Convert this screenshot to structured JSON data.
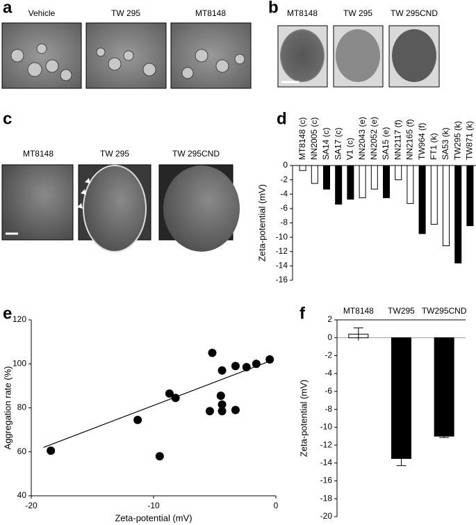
{
  "images": [
    {
      "panel_label": "a",
      "captions": [
        "Vehicle",
        "TW 295",
        "MT8148"
      ]
    },
    {
      "panel_label": "b",
      "captions": [
        "MT8148",
        "TW 295",
        "TW 295CND"
      ]
    },
    {
      "panel_label": "c",
      "captions": [
        "MT8148",
        "TW 295",
        "TW 295CND"
      ]
    }
  ],
  "chart_data": [
    {
      "type": "bar",
      "panel_label": "d",
      "y_label": "Zeta-potential (mV)",
      "categories": [
        "MT8148 (c)",
        "NN2005 (c)",
        "SA14 (c)",
        "SA17 (c)",
        "V1 (c)",
        "NN2043 (e)",
        "NN2052 (e)",
        "SA15 (e)",
        "NN2117 (f)",
        "NN2165 (f)",
        "TW964 (f)",
        "FT1 (k)",
        "SA53 (k)",
        "TW295 (k)",
        "TW871 (k)"
      ],
      "values": [
        -0.7,
        -2.5,
        -3.3,
        -5.4,
        -4.7,
        -4.5,
        -3.3,
        -4.5,
        -2.0,
        -5.3,
        -9.5,
        -8.2,
        -11.2,
        -13.6,
        -8.4
      ],
      "colors": [
        "#ffffff",
        "#ffffff",
        "#000000",
        "#000000",
        "#000000",
        "#ffffff",
        "#ffffff",
        "#000000",
        "#ffffff",
        "#ffffff",
        "#000000",
        "#ffffff",
        "#ffffff",
        "#000000",
        "#000000"
      ],
      "ylim": [
        -16,
        0
      ],
      "yticks": [
        0,
        -2,
        -4,
        -6,
        -8,
        -10,
        -12,
        -14,
        -16
      ]
    },
    {
      "type": "scatter",
      "panel_label": "e",
      "x_label": "Zeta-potential (mV)",
      "y_label": "Aggregation rate (%)",
      "x": [
        -18.4,
        -11.3,
        -9.5,
        -8.7,
        -8.2,
        -5.4,
        -5.2,
        -4.5,
        -4.4,
        -4.4,
        -4.4,
        -3.3,
        -3.3,
        -2.4,
        -1.6,
        -0.5
      ],
      "values": [
        60.5,
        74.5,
        58,
        86.5,
        84.5,
        78.5,
        105,
        85.5,
        97,
        81.5,
        78.5,
        99,
        79,
        98.5,
        100,
        102
      ],
      "color": "#000000",
      "trendline": {
        "x": [
          -19,
          -0.6
        ],
        "y": [
          62,
          101
        ]
      },
      "xlim": [
        -20,
        0
      ],
      "xticks": [
        -20,
        -10,
        0
      ],
      "ylim": [
        40,
        120
      ],
      "yticks": [
        40,
        60,
        80,
        100,
        120
      ]
    },
    {
      "type": "errorbar",
      "panel_label": "f",
      "y_label": "Zeta-potential (mV)",
      "categories": [
        "MT8148",
        "TW295",
        "TW295CND"
      ],
      "values": [
        0.4,
        -13.5,
        -11.0
      ],
      "errors": [
        0.7,
        0.8,
        0.15
      ],
      "colors": [
        "#ffffff",
        "#000000",
        "#000000"
      ],
      "ylim": [
        -20,
        2
      ],
      "yticks": [
        2,
        0,
        -2,
        -4,
        -6,
        -8,
        -10,
        -12,
        -14,
        -16,
        -18,
        -20
      ]
    }
  ]
}
